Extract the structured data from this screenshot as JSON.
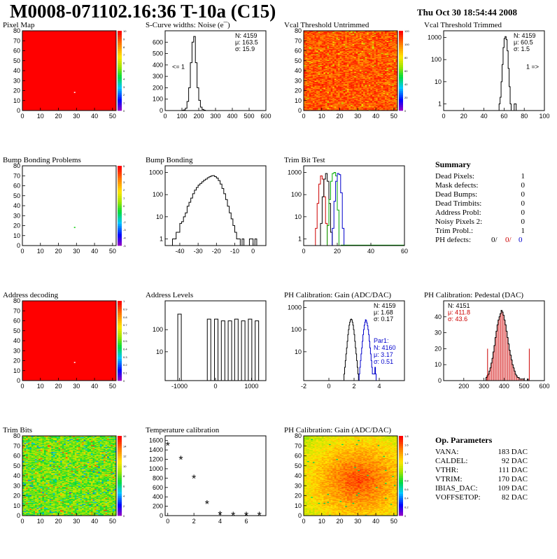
{
  "header": {
    "title": "M0008-071102.16:36 T-10a (C15)",
    "timestamp": "Thu Oct 30 18:54:44 2008"
  },
  "summary": {
    "title": "Summary",
    "rows": [
      {
        "label": "Dead Pixels:",
        "value": "1"
      },
      {
        "label": "Mask defects:",
        "value": "0"
      },
      {
        "label": "Dead Bumps:",
        "value": "0"
      },
      {
        "label": "Dead Trimbits:",
        "value": "0"
      },
      {
        "label": "Address Probl:",
        "value": "0"
      },
      {
        "label": "Noisy Pixels 2:",
        "value": "0"
      },
      {
        "label": "Trim Probl.:",
        "value": "1"
      }
    ],
    "ph_label": "PH defects:",
    "ph_values": [
      "0/",
      "0/",
      "0"
    ],
    "ph_colors": [
      "#000000",
      "#cc0000",
      "#0000cc"
    ]
  },
  "op_params": {
    "title": "Op. Parameters",
    "rows": [
      {
        "label": "VANA:",
        "value": "183 DAC"
      },
      {
        "label": "CALDEL:",
        "value": "92 DAC"
      },
      {
        "label": "VTHR:",
        "value": "111 DAC"
      },
      {
        "label": "VTRIM:",
        "value": "170 DAC"
      },
      {
        "label": "IBIAS_DAC:",
        "value": "109 DAC"
      },
      {
        "label": "VOFFSETOP:",
        "value": "82 DAC"
      }
    ]
  },
  "chart_data": [
    {
      "id": "pixel_map",
      "type": "heatmap",
      "title": "Pixel Map",
      "pattern": "uniform",
      "xlim": [
        0,
        52
      ],
      "ylim": [
        0,
        80
      ],
      "x_ticks": [
        0,
        10,
        20,
        30,
        40,
        50
      ],
      "y_ticks": [
        0,
        10,
        20,
        30,
        40,
        50,
        60,
        70,
        80
      ],
      "color_scale": [
        0,
        1,
        2,
        3,
        4,
        5,
        6,
        7,
        8,
        9,
        10
      ],
      "dead_pixels": [
        {
          "x": 29,
          "y": 18
        }
      ]
    },
    {
      "id": "scurve_noise",
      "type": "histogram",
      "title": "S-Curve widths: Noise (e¯)",
      "xlim": [
        0,
        600
      ],
      "ylim": [
        0,
        700
      ],
      "x_ticks": [
        0,
        100,
        200,
        300,
        400,
        500,
        600
      ],
      "y_ticks": [
        0,
        100,
        200,
        300,
        400,
        500,
        600
      ],
      "stats": [
        "N: 4159",
        "μ: 163.5",
        "σ: 15.9"
      ],
      "annotations": [
        "<= 1"
      ],
      "bins": {
        "start": 100,
        "width": 10,
        "counts": [
          2,
          5,
          20,
          80,
          200,
          420,
          600,
          650,
          420,
          200,
          90,
          30,
          10,
          3
        ]
      }
    },
    {
      "id": "vcal_untrimmed",
      "type": "heatmap",
      "title": "Vcal Threshold Untrimmed",
      "pattern": "noise_warm",
      "xlim": [
        0,
        52
      ],
      "ylim": [
        0,
        80
      ],
      "x_ticks": [
        0,
        10,
        20,
        30,
        40,
        50
      ],
      "y_ticks": [
        0,
        10,
        20,
        30,
        40,
        50,
        60,
        70,
        80
      ],
      "color_scale": [
        0,
        20,
        40,
        60,
        80,
        100,
        120
      ]
    },
    {
      "id": "vcal_trimmed",
      "type": "histogram",
      "title": "Vcal Threshold Trimmed",
      "log_y": true,
      "xlim": [
        0,
        100
      ],
      "ylim": [
        0.5,
        2000
      ],
      "x_ticks": [
        0,
        20,
        40,
        60,
        80,
        100
      ],
      "y_ticks": [
        1,
        10,
        100,
        1000
      ],
      "stats": [
        "N: 4159",
        "μ: 60.5",
        "σ: 1.5"
      ],
      "annotations": [
        "1 =>"
      ],
      "bins": {
        "start": 55,
        "width": 1,
        "counts": [
          1,
          2,
          10,
          60,
          350,
          900,
          1100,
          800,
          250,
          40,
          6,
          1,
          0,
          0,
          0,
          1,
          1
        ]
      }
    },
    {
      "id": "bump_bonding_problems",
      "type": "heatmap",
      "title": "Bump Bonding Problems",
      "pattern": "empty",
      "xlim": [
        0,
        52
      ],
      "ylim": [
        0,
        80
      ],
      "x_ticks": [
        0,
        10,
        20,
        30,
        40,
        50
      ],
      "y_ticks": [
        0,
        10,
        20,
        30,
        40,
        50,
        60,
        70,
        80
      ],
      "color_scale": [
        -5,
        -4,
        -3,
        -2,
        -1,
        0,
        1,
        2,
        3,
        4,
        5
      ],
      "markers": [
        {
          "x": 29,
          "y": 18
        }
      ]
    },
    {
      "id": "bump_bonding",
      "type": "histogram",
      "title": "Bump Bonding",
      "log_y": true,
      "xlim": [
        -48,
        7
      ],
      "ylim": [
        0.5,
        2000
      ],
      "x_ticks": [
        -40,
        -30,
        -20,
        -10,
        0
      ],
      "y_ticks": [
        1,
        10,
        100,
        1000
      ],
      "bins": {
        "start": -44,
        "width": 1,
        "counts": [
          1,
          1,
          2,
          2,
          5,
          6,
          10,
          15,
          30,
          45,
          70,
          110,
          160,
          210,
          270,
          320,
          380,
          450,
          500,
          580,
          640,
          700,
          720,
          650,
          560,
          430,
          300,
          190,
          110,
          60,
          30,
          15,
          8,
          4,
          2,
          1,
          1,
          0,
          1,
          0,
          0,
          0,
          1,
          1,
          0,
          1
        ]
      }
    },
    {
      "id": "trim_bit_test",
      "type": "histogram",
      "title": "Trim Bit Test",
      "log_y": true,
      "xlim": [
        0,
        60
      ],
      "ylim": [
        0.5,
        2000
      ],
      "x_ticks": [
        0,
        20,
        40,
        60
      ],
      "y_ticks": [
        1,
        10,
        100,
        1000
      ],
      "series": [
        {
          "name": "",
          "color": "#cc0000",
          "start": 7,
          "width": 1,
          "counts": [
            3,
            40,
            300,
            700,
            500,
            80,
            5
          ]
        },
        {
          "name": "",
          "color": "#000000",
          "start": 10,
          "width": 1,
          "counts": [
            5,
            80,
            500,
            900,
            400,
            40,
            2
          ]
        },
        {
          "name": "",
          "color": "#00aa00",
          "start": 14,
          "width": 1,
          "counts": [
            4,
            60,
            400,
            900,
            1000,
            700,
            20
          ]
        },
        {
          "name": "",
          "color": "#0000cc",
          "start": 17,
          "width": 1,
          "counts": [
            3,
            50,
            400,
            900,
            800,
            120,
            3
          ]
        }
      ]
    },
    {
      "id": "address_decoding",
      "type": "heatmap",
      "title": "Address decoding",
      "pattern": "uniform",
      "xlim": [
        0,
        52
      ],
      "ylim": [
        0,
        80
      ],
      "x_ticks": [
        0,
        10,
        20,
        30,
        40,
        50
      ],
      "y_ticks": [
        0,
        10,
        20,
        30,
        40,
        50,
        60,
        70,
        80
      ],
      "color_scale": [
        0,
        0.1,
        0.2,
        0.3,
        0.4,
        0.5,
        0.6,
        0.7,
        0.8,
        0.9,
        1
      ],
      "dead_pixels": [
        {
          "x": 29,
          "y": 18
        }
      ]
    },
    {
      "id": "address_levels",
      "type": "histogram",
      "title": "Address Levels",
      "log_y": true,
      "xlim": [
        -1400,
        1400
      ],
      "ylim": [
        0.5,
        2000
      ],
      "x_ticks": [
        -1000,
        0,
        1000
      ],
      "y_ticks": [
        10,
        100
      ],
      "peaks": [
        {
          "x": -1000,
          "h": 500
        },
        {
          "x": -180,
          "h": 300
        },
        {
          "x": 20,
          "h": 300
        },
        {
          "x": 210,
          "h": 250
        },
        {
          "x": 400,
          "h": 250
        },
        {
          "x": 580,
          "h": 300
        },
        {
          "x": 770,
          "h": 250
        },
        {
          "x": 960,
          "h": 300
        },
        {
          "x": 1150,
          "h": 250
        }
      ]
    },
    {
      "id": "ph_gain",
      "type": "histogram",
      "title": "PH Calibration: Gain (ADC/DAC)",
      "log_y": true,
      "xlim": [
        -2,
        6
      ],
      "ylim": [
        0.5,
        2000
      ],
      "x_ticks": [
        -2,
        0,
        2,
        4
      ],
      "y_ticks": [
        10,
        100,
        1000
      ],
      "stats": [
        "N: 4159",
        "μ: 1.68",
        "σ: 0.17"
      ],
      "stats2": [
        "Par1:",
        "N: 4160",
        "μ: 3.17",
        "σ: 0.51"
      ],
      "series": [
        {
          "name": "",
          "color": "#000000",
          "start": 1.2,
          "width": 0.05,
          "counts": [
            1,
            2,
            4,
            8,
            15,
            30,
            60,
            100,
            160,
            220,
            280,
            300,
            280,
            220,
            160,
            100,
            60,
            30,
            15,
            8,
            4,
            2,
            1
          ]
        },
        {
          "name": "Par1",
          "color": "#0000cc",
          "start": 2.4,
          "width": 0.05,
          "counts": [
            1,
            2,
            4,
            8,
            15,
            30,
            60,
            100,
            160,
            220,
            280,
            250,
            200,
            150,
            100,
            60,
            30,
            15,
            8,
            4,
            2,
            1,
            1,
            1,
            1,
            2,
            1
          ]
        }
      ]
    },
    {
      "id": "ph_pedestal",
      "type": "histogram",
      "title": "PH Calibration: Pedestal (DAC)",
      "xlim": [
        100,
        600
      ],
      "ylim": [
        0,
        50
      ],
      "x_ticks": [
        200,
        300,
        400,
        500,
        600
      ],
      "y_ticks": [
        0,
        10,
        20,
        30,
        40
      ],
      "stats": [
        "N: 4151",
        "μ: 411.8",
        "σ: 43.6"
      ],
      "stats_colors": [
        "#000000",
        "#cc0000",
        "#cc0000"
      ],
      "markers": [
        {
          "x": 318
        },
        {
          "x": 525
        }
      ],
      "bins": {
        "start": 310,
        "width": 5,
        "counts": [
          2,
          3,
          4,
          6,
          8,
          11,
          14,
          18,
          22,
          27,
          31,
          35,
          38,
          40,
          42,
          44,
          43,
          41,
          38,
          35,
          31,
          27,
          23,
          19,
          16,
          13,
          10,
          8,
          6,
          4,
          3,
          2,
          2,
          1,
          1,
          1,
          1,
          1,
          0,
          0,
          0,
          1,
          0,
          0,
          0,
          0,
          0
        ]
      }
    },
    {
      "id": "trim_bits",
      "type": "heatmap",
      "title": "Trim Bits",
      "pattern": "noise_cool",
      "xlim": [
        0,
        52
      ],
      "ylim": [
        0,
        80
      ],
      "x_ticks": [
        0,
        10,
        20,
        30,
        40,
        50
      ],
      "y_ticks": [
        0,
        10,
        20,
        30,
        40,
        50,
        60,
        70,
        80
      ],
      "color_scale": [
        0,
        2,
        4,
        6,
        8,
        10,
        12,
        14,
        16
      ]
    },
    {
      "id": "temperature_calibration",
      "type": "scatter",
      "title": "Temperature calibration",
      "xlim": [
        -0.2,
        7.5
      ],
      "ylim": [
        0,
        1700
      ],
      "x_ticks": [
        0,
        2,
        4,
        6
      ],
      "y_ticks": [
        0,
        200,
        400,
        600,
        800,
        1000,
        1200,
        1400,
        1600
      ],
      "x": [
        0,
        1,
        2,
        3,
        4,
        5,
        6,
        7
      ],
      "y": [
        1500,
        1200,
        800,
        250,
        20,
        10,
        10,
        10
      ]
    },
    {
      "id": "ph_gain_map",
      "type": "heatmap",
      "title": "PH Calibration: Gain (ADC/DAC)",
      "pattern": "noise_center",
      "xlim": [
        0,
        52
      ],
      "ylim": [
        0,
        80
      ],
      "x_ticks": [
        0,
        10,
        20,
        30,
        40,
        50
      ],
      "y_ticks": [
        0,
        10,
        20,
        30,
        40,
        50,
        60,
        70,
        80
      ],
      "color_scale": [
        0,
        0.2,
        0.4,
        0.6,
        0.8,
        1,
        1.2,
        1.4,
        1.6,
        1.8
      ]
    }
  ]
}
